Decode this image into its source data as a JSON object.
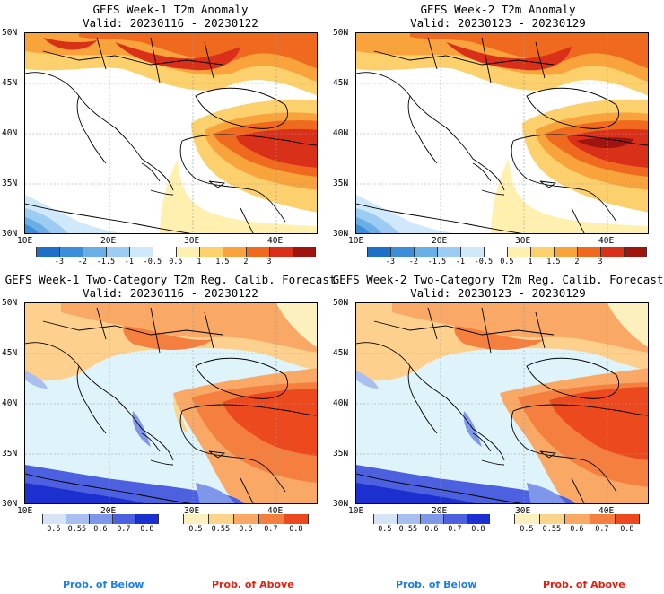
{
  "panels": [
    {
      "title": "GEFS Week-1 T2m Anomaly",
      "valid": "Valid: 20230116 - 20230122"
    },
    {
      "title": "GEFS Week-2 T2m Anomaly",
      "valid": "Valid: 20230123 - 20230129"
    },
    {
      "title": "GEFS Week-1 Two-Category T2m Reg. Calib. Forecast",
      "valid": "Valid: 20230116 - 20230122"
    },
    {
      "title": "GEFS Week-2 Two-Category T2m Reg. Calib. Forecast",
      "valid": "Valid: 20230123 - 20230129"
    }
  ],
  "lat_labels": [
    "50N",
    "45N",
    "40N",
    "35N",
    "30N"
  ],
  "lon_labels": [
    "10E",
    "20E",
    "30E",
    "40E"
  ],
  "anomaly_colorbar": {
    "labels": [
      "-3",
      "-2",
      "-1.5",
      "-1",
      "-0.5",
      "0.5",
      "1",
      "1.5",
      "2",
      "3"
    ],
    "colors": [
      "#1f6fc9",
      "#3d8ed8",
      "#6aaee6",
      "#9cccf2",
      "#cfe8fa",
      "#ffffff",
      "#fff0b0",
      "#fdd06e",
      "#f9a33c",
      "#ef6a1f",
      "#d9301a",
      "#9e1510"
    ]
  },
  "prob_colorbar_below": {
    "labels": [
      "0.5",
      "0.55",
      "0.6",
      "0.7",
      "0.8"
    ],
    "colors": [
      "#d7e3f7",
      "#a9bff0",
      "#7f97eb",
      "#4c60e0",
      "#1c2fcf"
    ]
  },
  "prob_colorbar_above": {
    "labels": [
      "0.5",
      "0.55",
      "0.6",
      "0.7",
      "0.8"
    ],
    "colors": [
      "#fdf0bf",
      "#fcd58d",
      "#f9a865",
      "#f47f3f",
      "#ec4a1e"
    ]
  },
  "legend": {
    "below": "Prob. of Below",
    "above": "Prob. of Above",
    "below_color": "#1e7fe0",
    "above_color": "#e02010"
  }
}
